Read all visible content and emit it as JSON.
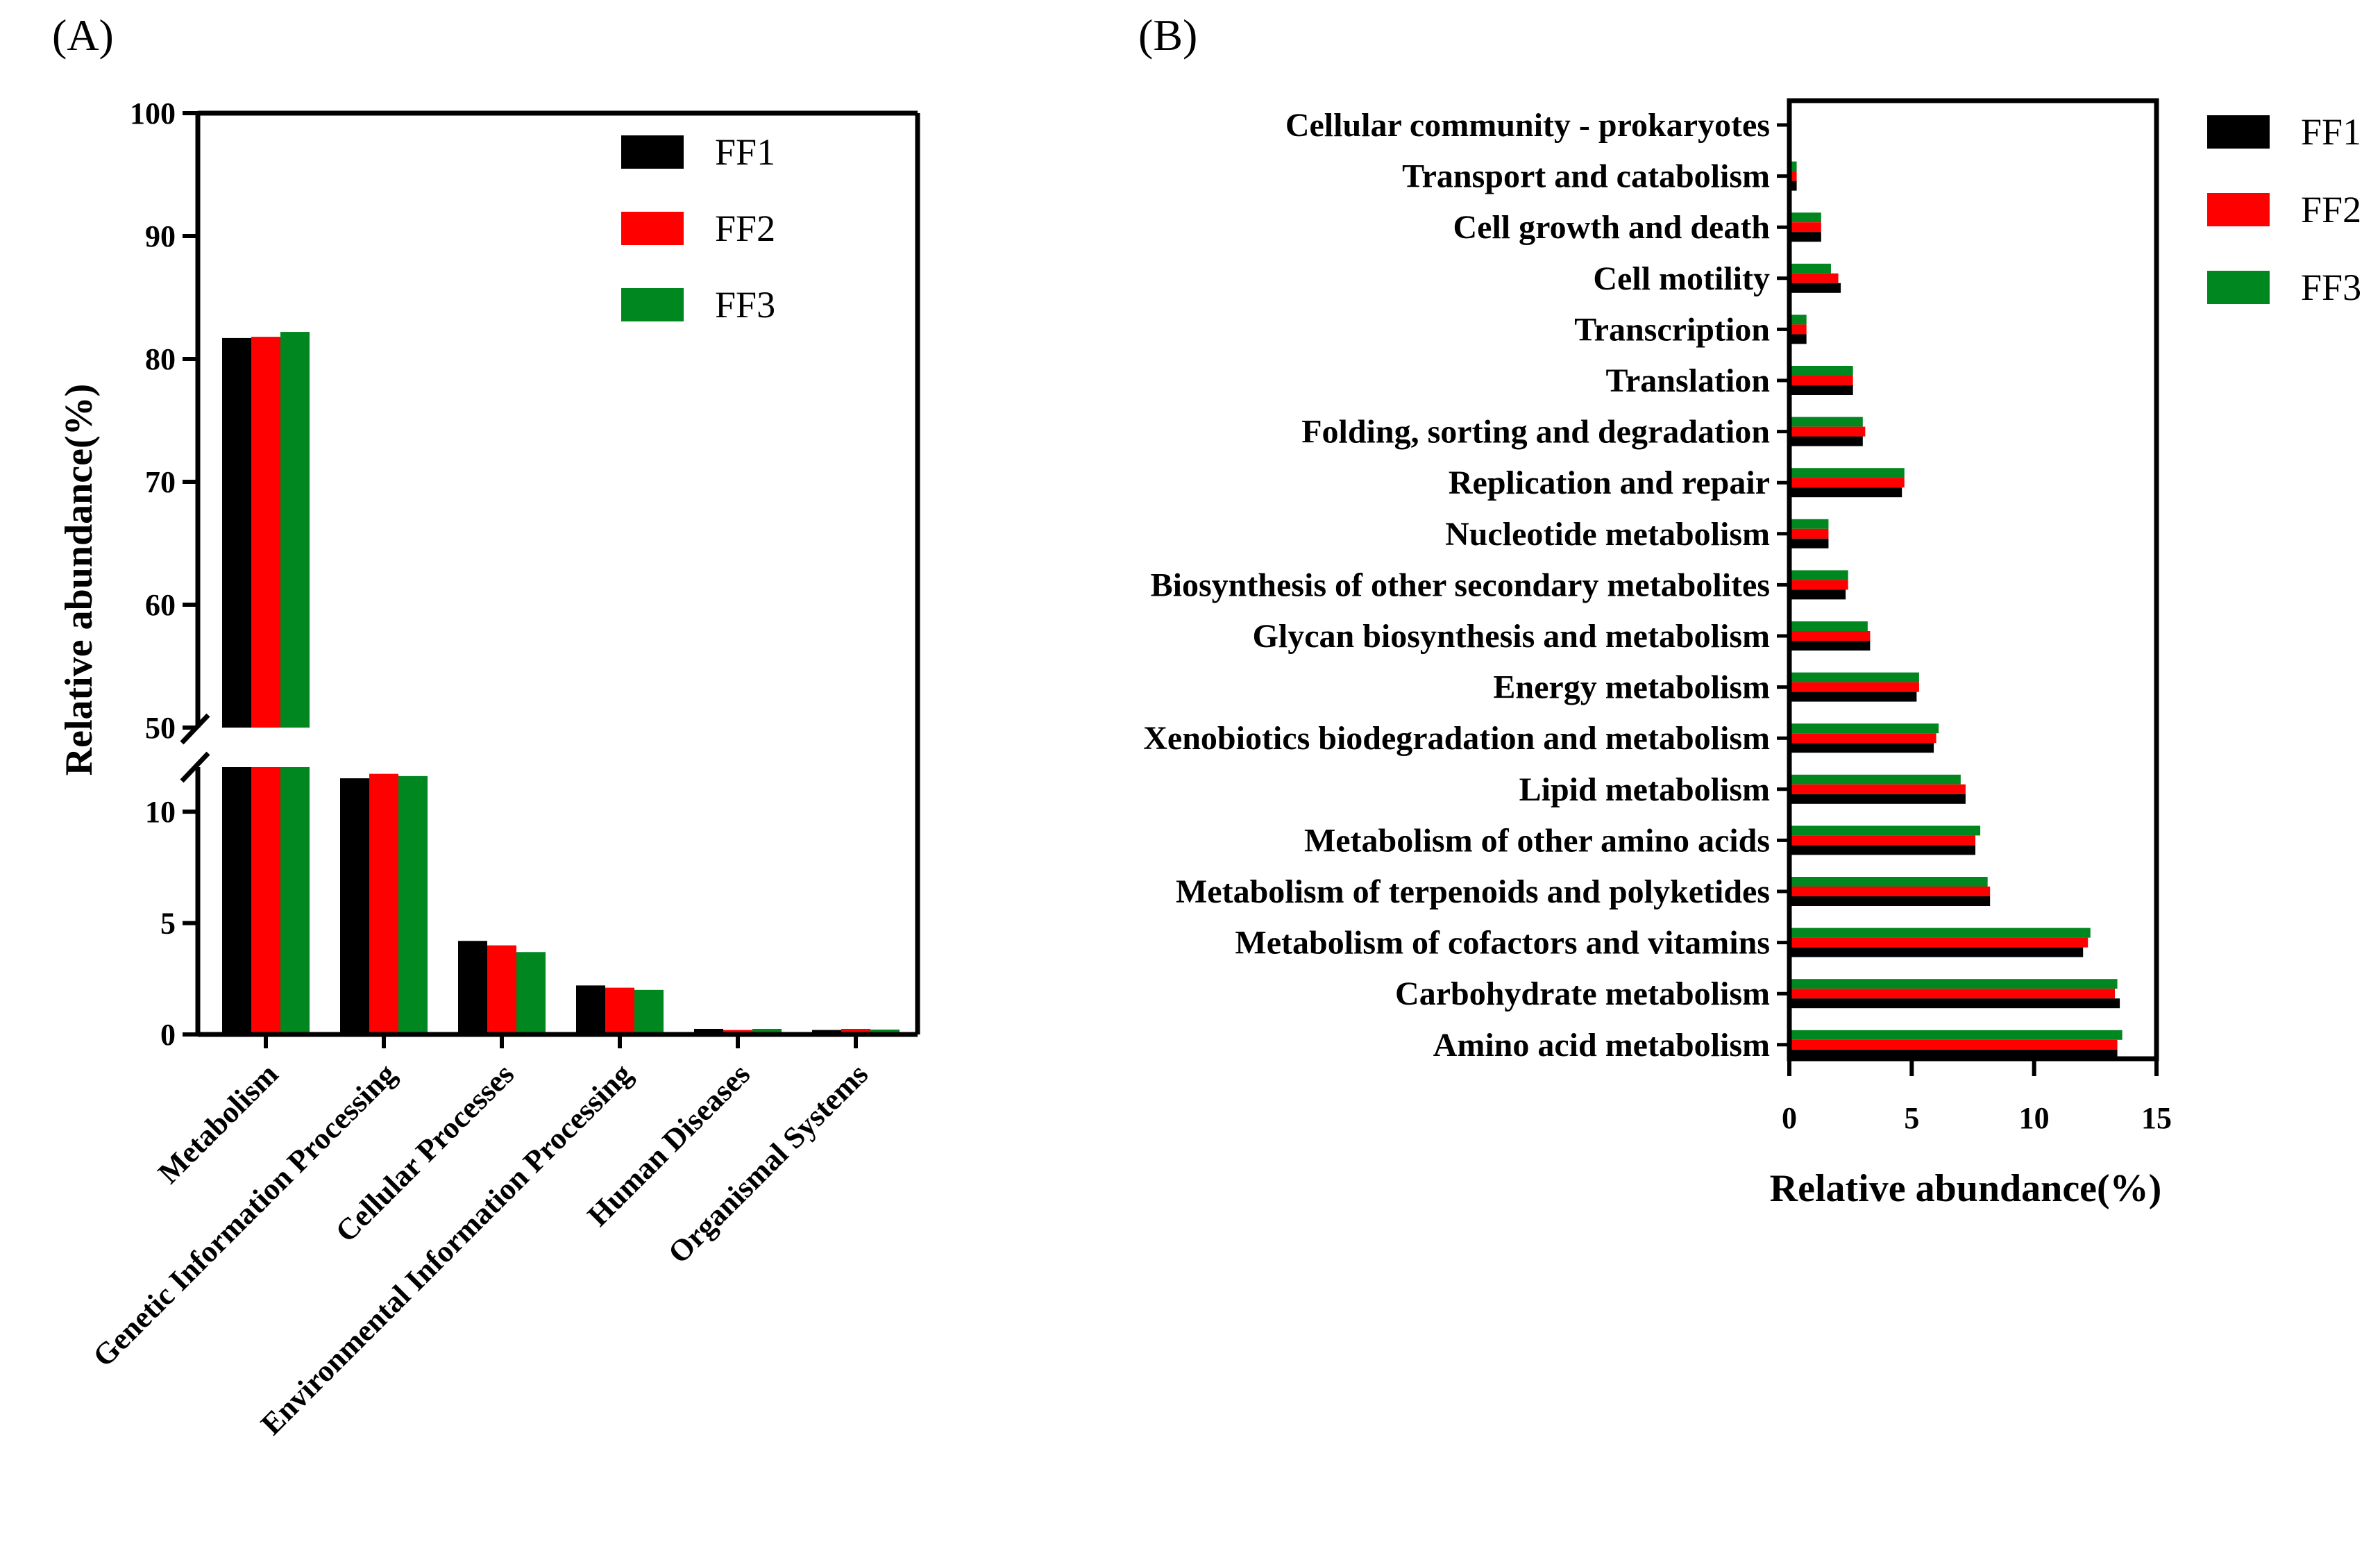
{
  "panel_a_label": "(A)",
  "panel_b_label": "(B)",
  "colors": {
    "FF1": "#000000",
    "FF2": "#ff0000",
    "FF3": "#00871f"
  },
  "chart_data": [
    {
      "type": "bar",
      "panel": "A",
      "orientation": "vertical",
      "broken_axis": true,
      "ylabel": "Relative abundance(%)",
      "xlabel": "",
      "legend_position": "top-right",
      "categories": [
        "Metabolism",
        "Genetic Information Processing",
        "Cellular Processes",
        "Environmental Information Processing",
        "Human Diseases",
        "Organismal Systems"
      ],
      "series": [
        {
          "name": "FF1",
          "values": [
            81.7,
            11.5,
            4.2,
            2.2,
            0.25,
            0.2
          ]
        },
        {
          "name": "FF2",
          "values": [
            81.8,
            11.7,
            4.0,
            2.1,
            0.2,
            0.25
          ]
        },
        {
          "name": "FF3",
          "values": [
            82.2,
            11.6,
            3.7,
            2.0,
            0.25,
            0.22
          ]
        }
      ],
      "lower_segment": {
        "ylim": [
          0,
          12
        ],
        "ticks": [
          "0",
          "5",
          "10"
        ],
        "tick_values": [
          0,
          5,
          10
        ]
      },
      "upper_segment": {
        "ylim": [
          50,
          100
        ],
        "ticks": [
          "50",
          "60",
          "70",
          "80",
          "90",
          "100"
        ],
        "tick_values": [
          50,
          60,
          70,
          80,
          90,
          100
        ]
      }
    },
    {
      "type": "bar",
      "panel": "B",
      "orientation": "horizontal",
      "xlabel": "Relative abundance(%)",
      "ylabel": "",
      "xlim": [
        0,
        15
      ],
      "x_ticks": [
        "0",
        "5",
        "10",
        "15"
      ],
      "x_tick_values": [
        0,
        5,
        10,
        15
      ],
      "legend_position": "right",
      "categories": [
        "Cellular community - prokaryotes",
        "Transport and catabolism",
        "Cell growth and death",
        "Cell motility",
        "Transcription",
        "Translation",
        "Folding, sorting and degradation",
        "Replication and repair",
        "Nucleotide metabolism",
        "Biosynthesis of other secondary metabolites",
        "Glycan biosynthesis and metabolism",
        "Energy metabolism",
        "Xenobiotics biodegradation and metabolism",
        "Lipid metabolism",
        "Metabolism of other amino acids",
        "Metabolism of terpenoids and polyketides",
        "Metabolism of cofactors and vitamins",
        "Carbohydrate metabolism",
        "Amino acid metabolism"
      ],
      "series": [
        {
          "name": "FF1",
          "values": [
            0.05,
            0.3,
            1.3,
            2.1,
            0.7,
            2.6,
            3.0,
            4.6,
            1.6,
            2.3,
            3.3,
            5.2,
            5.9,
            7.2,
            7.6,
            8.2,
            12.0,
            13.5,
            13.4
          ]
        },
        {
          "name": "FF2",
          "values": [
            0.05,
            0.3,
            1.3,
            2.0,
            0.7,
            2.6,
            3.1,
            4.7,
            1.6,
            2.4,
            3.3,
            5.3,
            6.0,
            7.2,
            7.6,
            8.2,
            12.2,
            13.3,
            13.4
          ]
        },
        {
          "name": "FF3",
          "values": [
            0.05,
            0.3,
            1.3,
            1.7,
            0.7,
            2.6,
            3.0,
            4.7,
            1.6,
            2.4,
            3.2,
            5.3,
            6.1,
            7.0,
            7.8,
            8.1,
            12.3,
            13.4,
            13.6
          ]
        }
      ]
    }
  ]
}
